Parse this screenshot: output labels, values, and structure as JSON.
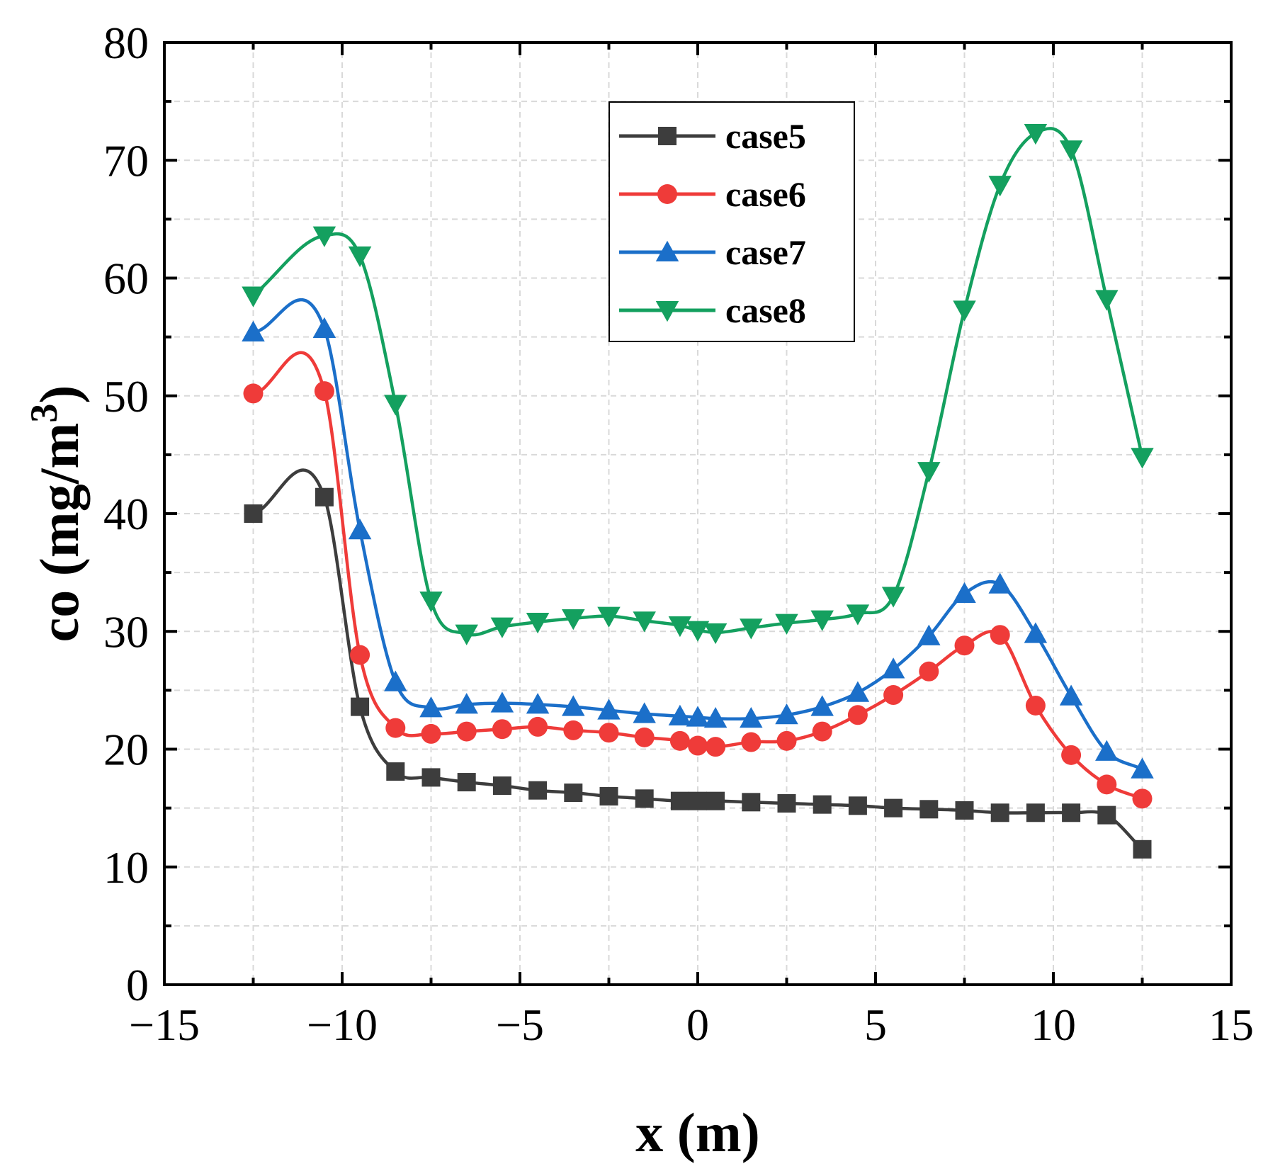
{
  "chart_data": {
    "type": "line",
    "title": "",
    "xlabel": "x (m)",
    "ylabel": "co (mg/m",
    "ylabel_superscript": "3",
    "ylabel_close": ")",
    "xlim": [
      -15,
      15
    ],
    "ylim": [
      0,
      80
    ],
    "xticks": [
      -15,
      -10,
      -5,
      0,
      5,
      10,
      15
    ],
    "yticks": [
      0,
      10,
      20,
      30,
      40,
      50,
      60,
      70,
      80
    ],
    "xtick_labels": [
      "−15",
      "−10",
      "−5",
      "0",
      "5",
      "10",
      "15"
    ],
    "ytick_labels": [
      "0",
      "10",
      "20",
      "30",
      "40",
      "50",
      "60",
      "70",
      "80"
    ],
    "grid": true,
    "legend_position": "top-center",
    "x": [
      -12.5,
      -10.5,
      -9.5,
      -8.5,
      -7.5,
      -6.5,
      -5.5,
      -4.5,
      -3.5,
      -2.5,
      -1.5,
      -0.5,
      0,
      0.5,
      1.5,
      2.5,
      3.5,
      4.5,
      5.5,
      6.5,
      7.5,
      8.5,
      9.5,
      10.5,
      11.5,
      12.5
    ],
    "series": [
      {
        "name": "case5",
        "color": "#3d3d3d",
        "marker": "square",
        "values": [
          40.0,
          41.4,
          23.6,
          18.1,
          17.6,
          17.2,
          16.9,
          16.5,
          16.3,
          16.0,
          15.8,
          15.6,
          15.6,
          15.6,
          15.5,
          15.4,
          15.3,
          15.2,
          15.0,
          14.9,
          14.8,
          14.6,
          14.6,
          14.6,
          14.4,
          11.5
        ]
      },
      {
        "name": "case6",
        "color": "#ef3b39",
        "marker": "circle",
        "values": [
          50.2,
          50.4,
          28.0,
          21.8,
          21.3,
          21.5,
          21.7,
          21.9,
          21.6,
          21.4,
          21.0,
          20.7,
          20.3,
          20.2,
          20.6,
          20.7,
          21.5,
          22.9,
          24.6,
          26.6,
          28.8,
          29.7,
          23.7,
          19.5,
          17.0,
          15.8
        ]
      },
      {
        "name": "case7",
        "color": "#1b6fc9",
        "marker": "triangle-up",
        "values": [
          55.4,
          55.7,
          38.6,
          25.7,
          23.5,
          23.8,
          23.9,
          23.8,
          23.6,
          23.3,
          23.0,
          22.8,
          22.7,
          22.6,
          22.6,
          22.9,
          23.6,
          24.8,
          26.8,
          29.6,
          33.2,
          34.0,
          29.8,
          24.5,
          19.8,
          18.3
        ]
      },
      {
        "name": "case8",
        "color": "#14a05f",
        "marker": "triangle-down",
        "values": [
          58.5,
          63.6,
          61.9,
          49.3,
          32.6,
          29.8,
          30.4,
          30.8,
          31.1,
          31.3,
          30.9,
          30.5,
          30.1,
          29.9,
          30.3,
          30.7,
          31.0,
          31.5,
          33.0,
          43.6,
          57.3,
          67.9,
          72.3,
          70.9,
          58.2,
          44.8
        ]
      }
    ]
  }
}
